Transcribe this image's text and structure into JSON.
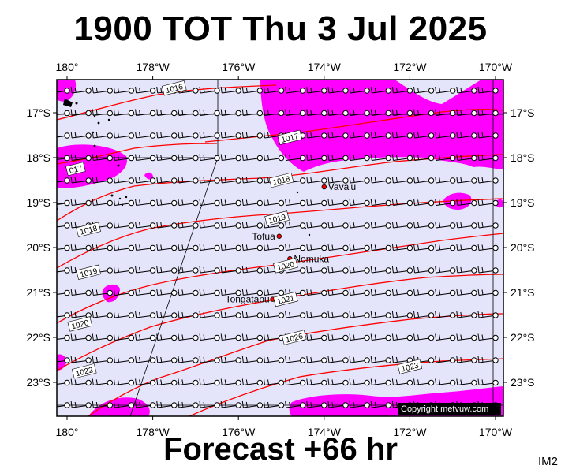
{
  "header": {
    "title": "1900 TOT Thu 3 Jul 2025"
  },
  "footer": {
    "forecast": "Forecast +66 hr",
    "image_id": "IM2",
    "copyright": "Copyright metvuw.com"
  },
  "colors": {
    "background": "#e4e4fa",
    "rain": "#ff00ff",
    "isobar": "#ff0000",
    "wind": "#000000"
  },
  "map": {
    "lon_ticks": [
      "180°",
      "178°W",
      "176°W",
      "174°W",
      "172°W",
      "170°W"
    ],
    "lat_ticks": [
      "17°S",
      "18°S",
      "19°S",
      "20°S",
      "21°S",
      "22°S",
      "23°S"
    ],
    "places": [
      {
        "name": "Vava'u",
        "lon": -174.0,
        "lat": -18.65
      },
      {
        "name": "Tofua",
        "lon": -175.05,
        "lat": -19.75
      },
      {
        "name": "Nomuka",
        "lon": -174.8,
        "lat": -20.25
      },
      {
        "name": "Tongatapu",
        "lon": -175.2,
        "lat": -21.15
      }
    ],
    "isobars": [
      {
        "label": "1016",
        "label_lon": -177.5,
        "label_lat": -16.45
      },
      {
        "label": "1017",
        "label_lon": -174.8,
        "label_lat": -17.55
      },
      {
        "label": "017",
        "label_lon": -179.8,
        "label_lat": -18.25
      },
      {
        "label": "1018",
        "label_lon": -175.0,
        "label_lat": -18.5
      },
      {
        "label": "1018",
        "label_lon": -179.5,
        "label_lat": -19.6
      },
      {
        "label": "1019",
        "label_lon": -175.1,
        "label_lat": -19.35
      },
      {
        "label": "1019",
        "label_lon": -179.5,
        "label_lat": -20.55
      },
      {
        "label": "1020",
        "label_lon": -174.9,
        "label_lat": -20.4
      },
      {
        "label": "1020",
        "label_lon": -179.7,
        "label_lat": -21.7
      },
      {
        "label": "1021",
        "label_lon": -174.9,
        "label_lat": -21.15
      },
      {
        "label": "1022",
        "label_lon": -179.6,
        "label_lat": -22.75
      },
      {
        "label": "1026",
        "label_lon": -174.7,
        "label_lat": -22.0
      },
      {
        "label": "1023",
        "label_lon": -172.0,
        "label_lat": -22.65
      }
    ]
  }
}
